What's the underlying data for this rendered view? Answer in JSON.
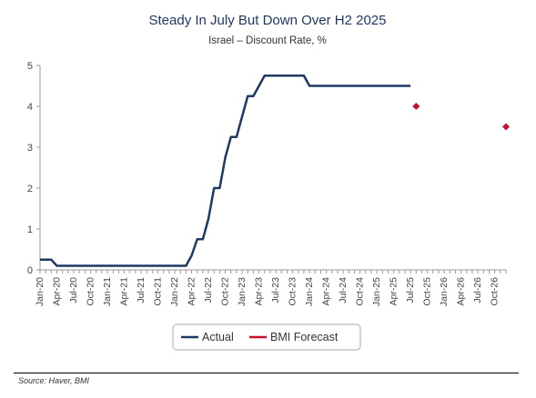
{
  "chart_data": {
    "type": "line",
    "title": "Steady In July But Down Over H2 2025",
    "subtitle": "Israel – Discount Rate, %",
    "xlabel": "",
    "ylabel": "",
    "ylim": [
      0,
      5
    ],
    "yticks": [
      "0",
      "1",
      "2",
      "3",
      "4",
      "5"
    ],
    "xlim": [
      "2020-01",
      "2026-12"
    ],
    "xticks": [
      "Jan-20",
      "Apr-20",
      "Jul-20",
      "Oct-20",
      "Jan-21",
      "Apr-21",
      "Jul-21",
      "Oct-21",
      "Jan-22",
      "Apr-22",
      "Jul-22",
      "Oct-22",
      "Jan-23",
      "Apr-23",
      "Jul-23",
      "Oct-23",
      "Jan-24",
      "Apr-24",
      "Jul-24",
      "Oct-24",
      "Jan-25",
      "Apr-25",
      "Jul-25",
      "Oct-25",
      "Jan-26",
      "Apr-26",
      "Jul-26",
      "Oct-26"
    ],
    "grid": false,
    "legend_position": "bottom",
    "series": [
      {
        "name": "Actual",
        "color": "#1f3864",
        "style": "line",
        "points": [
          [
            "2020-01",
            0.25
          ],
          [
            "2020-03",
            0.25
          ],
          [
            "2020-04",
            0.1
          ],
          [
            "2021-01",
            0.1
          ],
          [
            "2022-01",
            0.1
          ],
          [
            "2022-03",
            0.1
          ],
          [
            "2022-04",
            0.35
          ],
          [
            "2022-05",
            0.75
          ],
          [
            "2022-06",
            0.75
          ],
          [
            "2022-07",
            1.25
          ],
          [
            "2022-08",
            2.0
          ],
          [
            "2022-09",
            2.0
          ],
          [
            "2022-10",
            2.75
          ],
          [
            "2022-11",
            3.25
          ],
          [
            "2022-12",
            3.25
          ],
          [
            "2023-01",
            3.75
          ],
          [
            "2023-02",
            4.25
          ],
          [
            "2023-03",
            4.25
          ],
          [
            "2023-04",
            4.5
          ],
          [
            "2023-05",
            4.75
          ],
          [
            "2023-12",
            4.75
          ],
          [
            "2024-01",
            4.5
          ],
          [
            "2025-07",
            4.5
          ]
        ]
      },
      {
        "name": "BMI Forecast",
        "color": "#c8102e",
        "style": "marker",
        "points": [
          [
            "2025-08",
            4.0
          ],
          [
            "2026-12",
            3.5
          ]
        ]
      }
    ]
  },
  "source": "Source: Haver, BMI"
}
